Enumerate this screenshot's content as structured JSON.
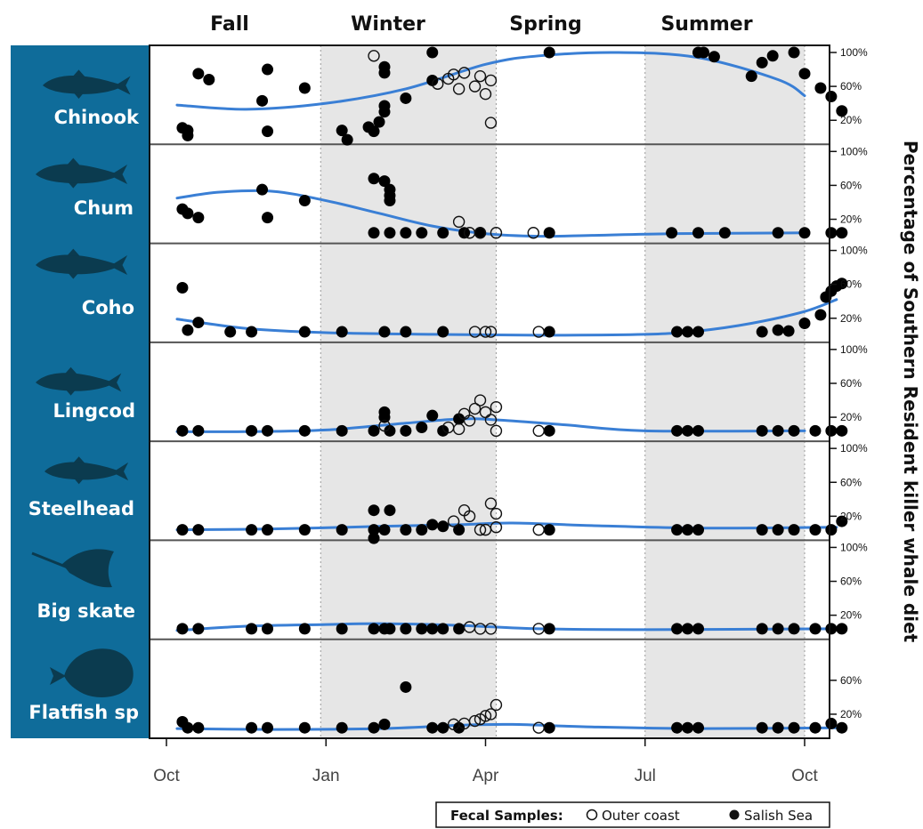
{
  "chart_data": {
    "type": "scatter",
    "title": "",
    "seasons": [
      "Fall",
      "Winter",
      "Spring",
      "Summer"
    ],
    "x_tick_labels": [
      "Oct",
      "Jan",
      "Apr",
      "Jul",
      "Oct"
    ],
    "y_tick_labels": [
      "100%",
      "60%",
      "20%"
    ],
    "ylabel": "Percentage of Southern Resident killer whale diet",
    "x_range_months": [
      0,
      12
    ],
    "y_range": [
      0,
      100
    ],
    "shaded_seasons": [
      "Winter",
      "Summer"
    ],
    "legend": {
      "title": "Fecal Samples:",
      "outer_label": "Outer coast",
      "salish_label": "Salish Sea",
      "placement": "bottom-right"
    },
    "trend_color": "#3a7fd5",
    "species_panel_color": "#0f6c9a",
    "panels": [
      {
        "species": "Chinook",
        "icon": "chinook-salmon-icon",
        "trend": [
          [
            0.2,
            38
          ],
          [
            1.5,
            33
          ],
          [
            3,
            40
          ],
          [
            4.5,
            57
          ],
          [
            6,
            86
          ],
          [
            7,
            96
          ],
          [
            8.5,
            100
          ],
          [
            10,
            94
          ],
          [
            11.5,
            68
          ],
          [
            12,
            49
          ]
        ],
        "salish": [
          [
            0.3,
            11
          ],
          [
            0.4,
            8
          ],
          [
            0.4,
            2
          ],
          [
            0.6,
            75
          ],
          [
            0.8,
            68
          ],
          [
            1.8,
            43
          ],
          [
            1.9,
            7
          ],
          [
            1.9,
            80
          ],
          [
            2.6,
            58
          ],
          [
            3.3,
            8
          ],
          [
            3.4,
            -3
          ],
          [
            3.8,
            12
          ],
          [
            3.9,
            7
          ],
          [
            4.0,
            18
          ],
          [
            4.1,
            30
          ],
          [
            4.1,
            37
          ],
          [
            4.1,
            76
          ],
          [
            4.1,
            83
          ],
          [
            4.5,
            46
          ],
          [
            5.0,
            100
          ],
          [
            5.0,
            67
          ],
          [
            7.2,
            100
          ],
          [
            10.0,
            100
          ],
          [
            10.1,
            100
          ],
          [
            10.3,
            95
          ],
          [
            11.0,
            72
          ],
          [
            11.2,
            88
          ],
          [
            11.4,
            96
          ],
          [
            11.8,
            100
          ],
          [
            12.0,
            75
          ],
          [
            12.3,
            58
          ],
          [
            12.5,
            48
          ],
          [
            12.7,
            31
          ]
        ],
        "outer": [
          [
            3.9,
            96
          ],
          [
            5.1,
            63
          ],
          [
            5.3,
            69
          ],
          [
            5.4,
            74
          ],
          [
            5.5,
            57
          ],
          [
            5.6,
            76
          ],
          [
            5.8,
            60
          ],
          [
            5.9,
            72
          ],
          [
            6.0,
            51
          ],
          [
            6.1,
            67
          ],
          [
            6.1,
            17
          ]
        ]
      },
      {
        "species": "Chum",
        "icon": "chum-salmon-icon",
        "trend": [
          [
            0.2,
            45
          ],
          [
            1.0,
            52
          ],
          [
            2.0,
            53
          ],
          [
            3.0,
            42
          ],
          [
            4.0,
            27
          ],
          [
            5.0,
            12
          ],
          [
            6.0,
            3
          ],
          [
            7.0,
            0
          ],
          [
            8.0,
            1
          ],
          [
            9.5,
            3
          ],
          [
            12.0,
            4
          ]
        ],
        "salish": [
          [
            0.3,
            32
          ],
          [
            0.4,
            27
          ],
          [
            0.6,
            22
          ],
          [
            1.8,
            55
          ],
          [
            1.9,
            22
          ],
          [
            2.6,
            42
          ],
          [
            3.9,
            68
          ],
          [
            3.9,
            4
          ],
          [
            4.1,
            65
          ],
          [
            4.2,
            55
          ],
          [
            4.2,
            48
          ],
          [
            4.2,
            42
          ],
          [
            4.2,
            4
          ],
          [
            4.5,
            4
          ],
          [
            4.8,
            4
          ],
          [
            5.2,
            4
          ],
          [
            5.6,
            4
          ],
          [
            5.9,
            4
          ],
          [
            7.2,
            4
          ],
          [
            9.5,
            4
          ],
          [
            10.0,
            4
          ],
          [
            10.5,
            4
          ],
          [
            11.5,
            4
          ],
          [
            12.0,
            4
          ],
          [
            12.5,
            4
          ],
          [
            12.7,
            4
          ]
        ],
        "outer": [
          [
            5.5,
            17
          ],
          [
            5.7,
            4
          ],
          [
            5.9,
            4
          ],
          [
            6.2,
            4
          ],
          [
            6.9,
            4
          ]
        ]
      },
      {
        "species": "Coho",
        "icon": "coho-salmon-icon",
        "trend": [
          [
            0.2,
            19
          ],
          [
            1.5,
            8
          ],
          [
            3.0,
            3
          ],
          [
            5.0,
            1
          ],
          [
            7.0,
            0
          ],
          [
            9.0,
            1
          ],
          [
            10.0,
            5
          ],
          [
            11.0,
            14
          ],
          [
            12.0,
            28
          ],
          [
            12.6,
            42
          ]
        ],
        "salish": [
          [
            0.3,
            56
          ],
          [
            0.4,
            6
          ],
          [
            0.6,
            15
          ],
          [
            1.2,
            4
          ],
          [
            1.6,
            4
          ],
          [
            2.6,
            4
          ],
          [
            3.3,
            4
          ],
          [
            4.1,
            4
          ],
          [
            4.5,
            4
          ],
          [
            5.2,
            4
          ],
          [
            7.2,
            4
          ],
          [
            9.6,
            4
          ],
          [
            9.8,
            4
          ],
          [
            10.0,
            4
          ],
          [
            11.2,
            4
          ],
          [
            11.5,
            6
          ],
          [
            11.7,
            5
          ],
          [
            12.0,
            14
          ],
          [
            12.3,
            24
          ],
          [
            12.4,
            45
          ],
          [
            12.5,
            52
          ],
          [
            12.6,
            58
          ],
          [
            12.7,
            61
          ]
        ],
        "outer": [
          [
            5.8,
            4
          ],
          [
            6.0,
            4
          ],
          [
            6.1,
            4
          ],
          [
            7.0,
            4
          ]
        ]
      },
      {
        "species": "Lingcod",
        "icon": "lingcod-icon",
        "trend": [
          [
            0.2,
            3
          ],
          [
            1.5,
            3
          ],
          [
            3.0,
            5
          ],
          [
            4.5,
            13
          ],
          [
            5.5,
            18
          ],
          [
            6.2,
            17
          ],
          [
            7.5,
            11
          ],
          [
            9.0,
            4
          ],
          [
            12.0,
            4
          ]
        ],
        "salish": [
          [
            0.3,
            4
          ],
          [
            0.6,
            4
          ],
          [
            1.6,
            4
          ],
          [
            1.9,
            4
          ],
          [
            2.6,
            4
          ],
          [
            3.3,
            4
          ],
          [
            3.9,
            4
          ],
          [
            4.1,
            26
          ],
          [
            4.1,
            20
          ],
          [
            4.2,
            4
          ],
          [
            4.5,
            4
          ],
          [
            4.8,
            8
          ],
          [
            5.0,
            22
          ],
          [
            5.2,
            4
          ],
          [
            5.5,
            18
          ],
          [
            7.2,
            4
          ],
          [
            9.6,
            4
          ],
          [
            9.8,
            4
          ],
          [
            10.0,
            4
          ],
          [
            11.2,
            4
          ],
          [
            11.5,
            4
          ],
          [
            11.8,
            4
          ],
          [
            12.2,
            4
          ],
          [
            12.5,
            4
          ],
          [
            12.7,
            4
          ]
        ],
        "outer": [
          [
            4.1,
            10
          ],
          [
            5.3,
            8
          ],
          [
            5.5,
            6
          ],
          [
            5.6,
            24
          ],
          [
            5.7,
            16
          ],
          [
            5.8,
            30
          ],
          [
            5.9,
            40
          ],
          [
            6.0,
            26
          ],
          [
            6.1,
            17
          ],
          [
            6.2,
            32
          ],
          [
            6.2,
            4
          ],
          [
            7.0,
            4
          ]
        ]
      },
      {
        "species": "Steelhead",
        "icon": "steelhead-icon",
        "trend": [
          [
            0.2,
            4
          ],
          [
            2.0,
            5
          ],
          [
            4.0,
            8
          ],
          [
            5.5,
            10
          ],
          [
            6.5,
            12
          ],
          [
            8.0,
            9
          ],
          [
            10.0,
            6
          ],
          [
            12.6,
            7
          ]
        ],
        "salish": [
          [
            0.3,
            4
          ],
          [
            0.6,
            4
          ],
          [
            1.6,
            4
          ],
          [
            1.9,
            4
          ],
          [
            2.6,
            4
          ],
          [
            3.3,
            4
          ],
          [
            3.9,
            4
          ],
          [
            3.9,
            27
          ],
          [
            3.9,
            -6
          ],
          [
            4.1,
            4
          ],
          [
            4.2,
            27
          ],
          [
            4.5,
            4
          ],
          [
            4.8,
            4
          ],
          [
            5.0,
            10
          ],
          [
            5.2,
            8
          ],
          [
            5.5,
            4
          ],
          [
            7.2,
            4
          ],
          [
            9.6,
            4
          ],
          [
            9.8,
            4
          ],
          [
            10.0,
            4
          ],
          [
            11.2,
            4
          ],
          [
            11.5,
            4
          ],
          [
            11.8,
            4
          ],
          [
            12.2,
            4
          ],
          [
            12.5,
            4
          ],
          [
            12.7,
            14
          ]
        ],
        "outer": [
          [
            5.4,
            14
          ],
          [
            5.6,
            27
          ],
          [
            5.7,
            20
          ],
          [
            5.9,
            4
          ],
          [
            6.0,
            4
          ],
          [
            6.1,
            35
          ],
          [
            6.2,
            23
          ],
          [
            6.2,
            7
          ],
          [
            7.0,
            4
          ]
        ]
      },
      {
        "species": "Big skate",
        "icon": "big-skate-icon",
        "trend": [
          [
            0.2,
            2
          ],
          [
            1.5,
            7
          ],
          [
            3.0,
            9
          ],
          [
            4.0,
            10
          ],
          [
            5.5,
            8
          ],
          [
            7.0,
            4
          ],
          [
            9.0,
            3
          ],
          [
            12.6,
            4
          ]
        ],
        "salish": [
          [
            0.3,
            4
          ],
          [
            0.6,
            4
          ],
          [
            1.6,
            4
          ],
          [
            1.9,
            4
          ],
          [
            2.6,
            4
          ],
          [
            3.3,
            4
          ],
          [
            3.9,
            4
          ],
          [
            4.1,
            4
          ],
          [
            4.2,
            4
          ],
          [
            4.5,
            4
          ],
          [
            4.8,
            4
          ],
          [
            5.0,
            4
          ],
          [
            5.2,
            4
          ],
          [
            5.5,
            4
          ],
          [
            7.2,
            4
          ],
          [
            9.6,
            4
          ],
          [
            9.8,
            4
          ],
          [
            10.0,
            4
          ],
          [
            11.2,
            4
          ],
          [
            11.5,
            4
          ],
          [
            11.8,
            4
          ],
          [
            12.2,
            4
          ],
          [
            12.5,
            4
          ],
          [
            12.7,
            4
          ]
        ],
        "outer": [
          [
            5.7,
            6
          ],
          [
            5.9,
            4
          ],
          [
            6.1,
            4
          ],
          [
            7.0,
            4
          ]
        ]
      },
      {
        "species": "Flatfish sp",
        "icon": "flatfish-icon",
        "trend": [
          [
            0.2,
            3
          ],
          [
            2.0,
            2
          ],
          [
            4.0,
            3
          ],
          [
            5.5,
            7
          ],
          [
            6.5,
            8
          ],
          [
            8.0,
            5
          ],
          [
            10.0,
            3
          ],
          [
            12.6,
            4
          ]
        ],
        "salish": [
          [
            0.3,
            11
          ],
          [
            0.4,
            4
          ],
          [
            0.6,
            4
          ],
          [
            1.6,
            4
          ],
          [
            1.9,
            4
          ],
          [
            2.6,
            4
          ],
          [
            3.3,
            4
          ],
          [
            3.9,
            4
          ],
          [
            4.1,
            8
          ],
          [
            4.5,
            52
          ],
          [
            5.0,
            4
          ],
          [
            5.2,
            4
          ],
          [
            5.5,
            4
          ],
          [
            7.2,
            4
          ],
          [
            9.6,
            4
          ],
          [
            9.8,
            4
          ],
          [
            10.0,
            4
          ],
          [
            11.2,
            4
          ],
          [
            11.5,
            4
          ],
          [
            11.8,
            4
          ],
          [
            12.2,
            4
          ],
          [
            12.5,
            9
          ],
          [
            12.7,
            4
          ]
        ],
        "outer": [
          [
            5.4,
            8
          ],
          [
            5.6,
            9
          ],
          [
            5.8,
            12
          ],
          [
            5.9,
            14
          ],
          [
            6.0,
            18
          ],
          [
            6.1,
            20
          ],
          [
            6.2,
            31
          ],
          [
            7.0,
            4
          ]
        ]
      }
    ]
  }
}
